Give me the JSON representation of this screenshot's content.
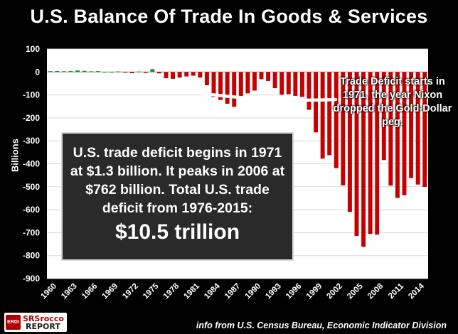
{
  "chart_data": {
    "type": "bar",
    "title": "U.S. Balance Of Trade In Goods & Services",
    "ylabel": "Billions",
    "xlabel": "",
    "ylim": [
      -900,
      100
    ],
    "yticks": [
      100,
      0,
      -100,
      -200,
      -300,
      -400,
      -500,
      -600,
      -700,
      -800,
      -900
    ],
    "xtick_labels": [
      "1960",
      "1963",
      "1966",
      "1969",
      "1972",
      "1975",
      "1978",
      "1981",
      "1984",
      "1987",
      "1990",
      "1993",
      "1996",
      "1999",
      "2002",
      "2005",
      "2008",
      "2011",
      "2014"
    ],
    "categories": [
      1960,
      1961,
      1962,
      1963,
      1964,
      1965,
      1966,
      1967,
      1968,
      1969,
      1970,
      1971,
      1972,
      1973,
      1974,
      1975,
      1976,
      1977,
      1978,
      1979,
      1980,
      1981,
      1982,
      1983,
      1984,
      1985,
      1986,
      1987,
      1988,
      1989,
      1990,
      1991,
      1992,
      1993,
      1994,
      1995,
      1996,
      1997,
      1998,
      1999,
      2000,
      2001,
      2002,
      2003,
      2004,
      2005,
      2006,
      2007,
      2008,
      2009,
      2010,
      2011,
      2012,
      2013,
      2014,
      2015
    ],
    "values": [
      3.5,
      4.2,
      3.4,
      4.2,
      6.8,
      4.9,
      2.9,
      3.8,
      0.6,
      0.1,
      2.3,
      -1.3,
      -5.4,
      1.9,
      -4.3,
      12.4,
      -6.1,
      -27.2,
      -29.8,
      -24.6,
      -19.4,
      -16.2,
      -24.2,
      -57.8,
      -109.1,
      -121.9,
      -138.5,
      -151.7,
      -114.6,
      -93.1,
      -80.9,
      -31.1,
      -39.2,
      -70.3,
      -98.5,
      -96.4,
      -104.1,
      -108.3,
      -164.9,
      -263.2,
      -377.6,
      -362.7,
      -418.8,
      -493.9,
      -609.4,
      -714.2,
      -761.7,
      -705.4,
      -708.7,
      -383.8,
      -494.7,
      -548.6,
      -536.8,
      -461.9,
      -490.3,
      -500.4
    ],
    "positive_color": "#1f8a3a",
    "negative_color": "#c40000",
    "annotations": {
      "deficit_start": "Trade Deficit starts in 1971, the year Nixon dropped the Gold-Dollar peg.",
      "summary": "U.S. trade deficit begins in 1971 at $1.3 billion.  It peaks in 2006 at $762 billion.  Total U.S. trade deficit from 1976-2015:",
      "summary_total": "$10.5 trillion"
    }
  },
  "logo": {
    "badge": "ERDI",
    "line1": "SRSrocco",
    "line2": "REPORT"
  },
  "source": "info from U.S. Census Bureau, Economic Indicator Division"
}
